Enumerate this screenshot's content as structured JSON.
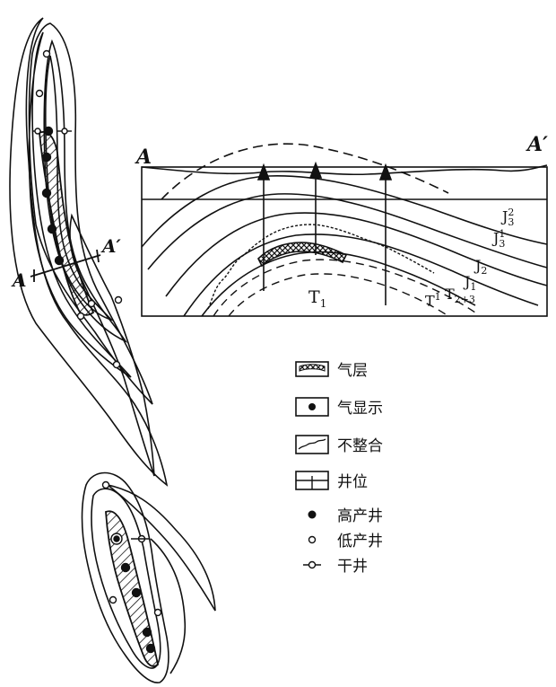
{
  "section_label_left": "A",
  "section_label_right": "A′",
  "map_label_left": "A",
  "map_label_right": "A′",
  "strata": {
    "J3_2_base": "J",
    "J3_2_sup": "2",
    "J3_2_sub": "3",
    "J3_1_base": "J",
    "J3_1_sup": "1",
    "J3_1_sub": "3",
    "J2_base": "J",
    "J2_sub": "2",
    "J1_base": "J",
    "J1_sub": "1",
    "T1_base": "T",
    "T1_sub": "1",
    "T1prime_base": "T",
    "T1prime_sup": "1",
    "T23_base": "T",
    "T23_sub": "2+3"
  },
  "legend": [
    {
      "icon": "gas-layer-swatch",
      "label": "气层"
    },
    {
      "icon": "gas-show-swatch",
      "label": "气显示"
    },
    {
      "icon": "unconformity-swatch",
      "label": "不整合"
    },
    {
      "icon": "well-location-swatch",
      "label": "井位"
    },
    {
      "icon": "high-yield-well-dot",
      "label": "高产井"
    },
    {
      "icon": "low-yield-well-circle",
      "label": "低产井"
    },
    {
      "icon": "dry-well-symbol",
      "label": "干井"
    }
  ]
}
